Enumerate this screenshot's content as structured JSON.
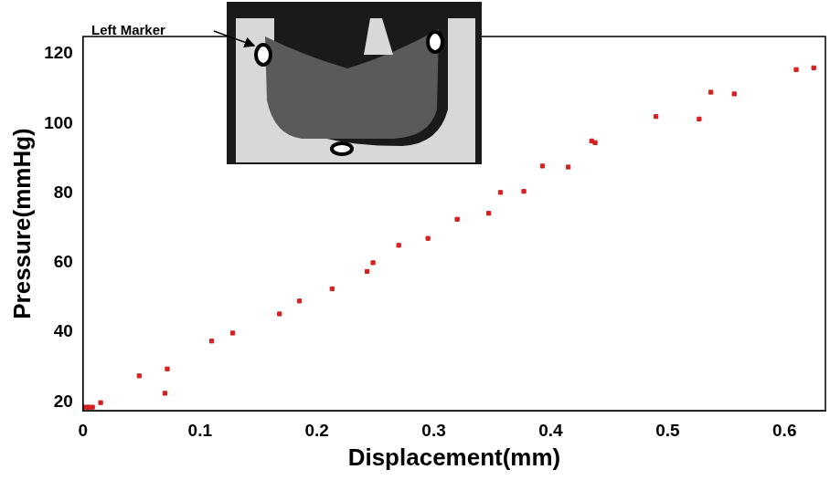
{
  "chart_data": {
    "type": "scatter",
    "x_label": "Displacement(mm)",
    "y_label": "Pressure(mmHg)",
    "annotation": "Left Marker",
    "x": [
      0,
      0.003,
      0.005,
      0.008,
      0.015,
      0.048,
      0.07,
      0.072,
      0.11,
      0.128,
      0.168,
      0.185,
      0.213,
      0.243,
      0.248,
      0.27,
      0.295,
      0.32,
      0.347,
      0.357,
      0.377,
      0.393,
      0.415,
      0.435,
      0.438,
      0.49,
      0.527,
      0.537,
      0.557,
      0.61,
      0.625
    ],
    "values": [
      18.5,
      18.5,
      18.5,
      18.5,
      19.8,
      27.5,
      22.5,
      29.5,
      37.5,
      39.8,
      45.3,
      49,
      52.5,
      57.5,
      60,
      65,
      67,
      72.5,
      74.2,
      80.2,
      80.5,
      87.8,
      87.5,
      95,
      94.5,
      102,
      101.3,
      109,
      108.5,
      115.5,
      116
    ],
    "color": "#d42020",
    "marker": "square",
    "xlim": [
      0,
      0.635
    ],
    "ylim": [
      17.5,
      125
    ],
    "xticks": [
      0,
      0.1,
      0.2,
      0.3,
      0.4,
      0.5,
      0.6
    ],
    "yticks": [
      20,
      40,
      60,
      80,
      100,
      120
    ],
    "grid": false
  }
}
